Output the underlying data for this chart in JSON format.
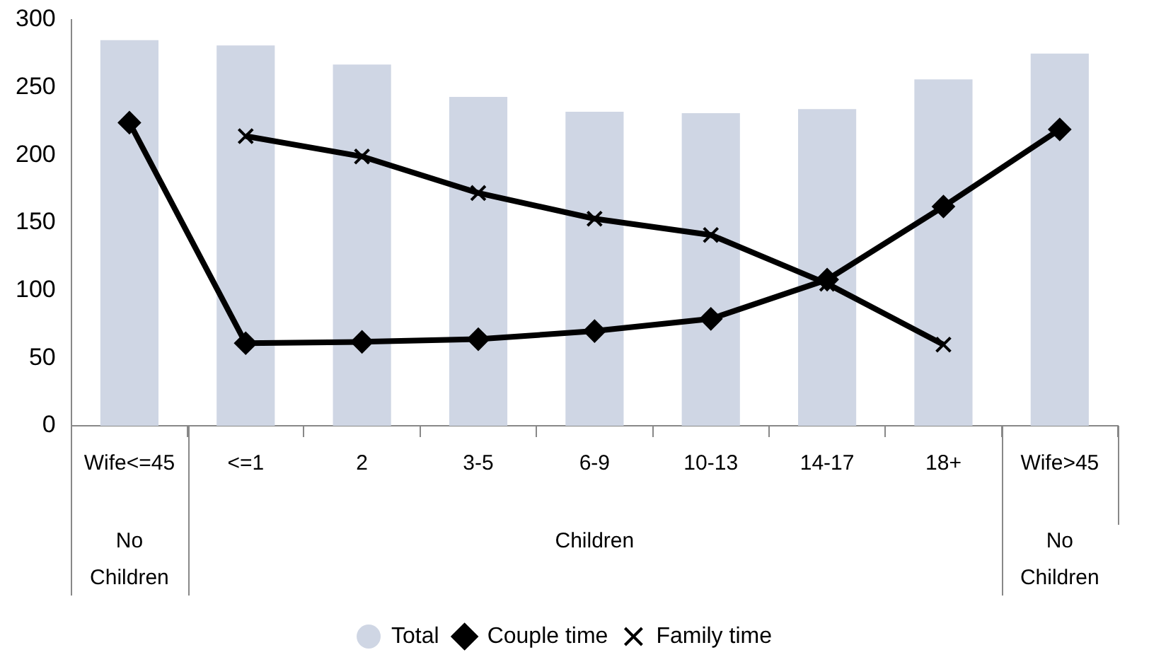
{
  "chart_data": {
    "type": "bar",
    "categories": [
      "Wife<=45",
      "<=1",
      "2",
      "3-5",
      "6-9",
      "10-13",
      "14-17",
      "18+",
      "Wife>45"
    ],
    "series": [
      {
        "name": "Total",
        "color": "#cfd6e4",
        "values": [
          285,
          281,
          267,
          243,
          232,
          231,
          234,
          256,
          275
        ]
      },
      {
        "name": "Couple time",
        "type": "line",
        "color": "#000000",
        "marker": "diamond",
        "values": [
          224,
          61,
          62,
          64,
          70,
          79,
          108,
          162,
          219
        ]
      },
      {
        "name": "Family time",
        "type": "line",
        "color": "#000000",
        "marker": "cross",
        "values": [
          null,
          214,
          199,
          172,
          153,
          141,
          105,
          60,
          null
        ]
      }
    ],
    "ylim": [
      0,
      300
    ],
    "yticks": [
      0,
      50,
      100,
      150,
      200,
      250,
      300
    ],
    "grid": false,
    "legend": "bottom",
    "annotations": [
      "No Children",
      "Children",
      "No Children"
    ]
  }
}
